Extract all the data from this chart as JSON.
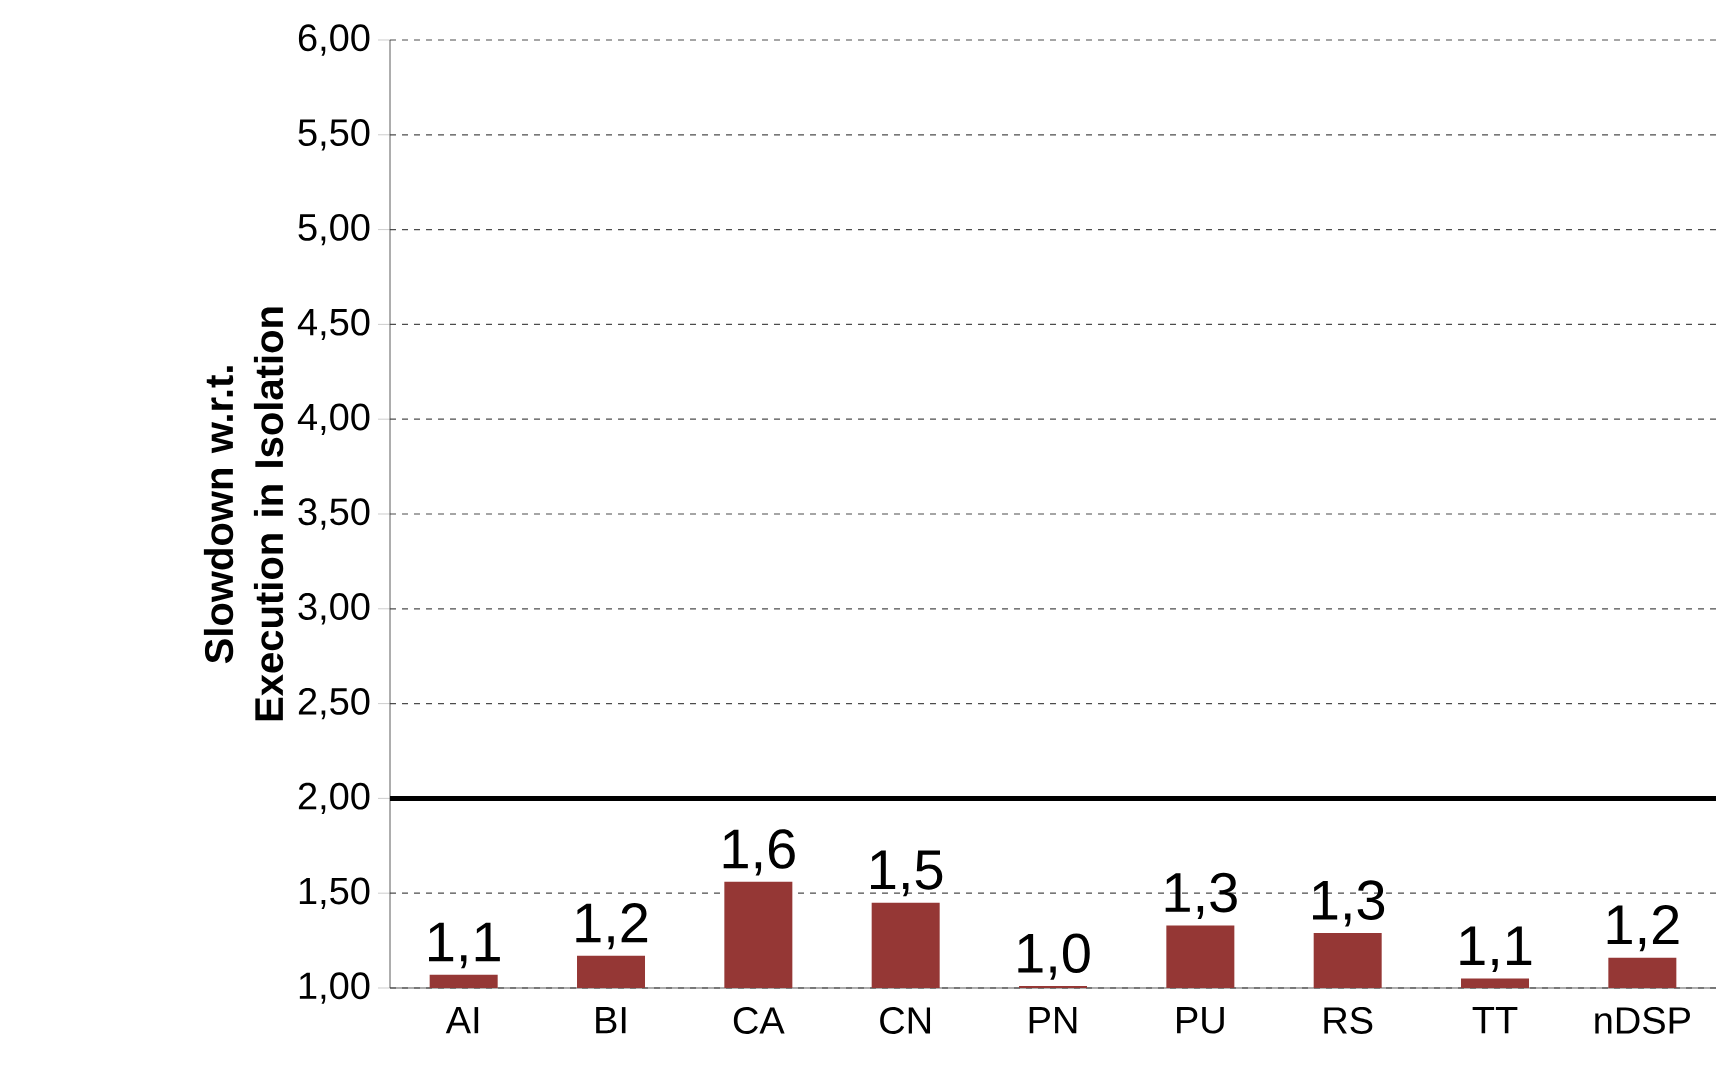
{
  "chart_data": {
    "type": "bar",
    "ylabel": "Slowdown  w.r.t. Execution in Isolation",
    "categories": [
      "AI",
      "BI",
      "CA",
      "CN",
      "PN",
      "PU",
      "RS",
      "TT",
      "nDSP"
    ],
    "values": [
      1.07,
      1.17,
      1.56,
      1.45,
      1.01,
      1.33,
      1.29,
      1.05,
      1.16
    ],
    "value_labels": [
      "1,1",
      "1,2",
      "1,6",
      "1,5",
      "1,0",
      "1,3",
      "1,3",
      "1,1",
      "1,2"
    ],
    "color": "#953735",
    "ylim": [
      1,
      6
    ],
    "yticks": [
      {
        "value": 1,
        "label": "1,00"
      },
      {
        "value": 1.5,
        "label": "1,50"
      },
      {
        "value": 2,
        "label": "2,00"
      },
      {
        "value": 2.5,
        "label": "2,50"
      },
      {
        "value": 3,
        "label": "3,00"
      },
      {
        "value": 3.5,
        "label": "3,50"
      },
      {
        "value": 4,
        "label": "4,00"
      },
      {
        "value": 4.5,
        "label": "4,50"
      },
      {
        "value": 5,
        "label": "5,00"
      },
      {
        "value": 5.5,
        "label": "5,50"
      },
      {
        "value": 6,
        "label": "6,00"
      }
    ],
    "grid": "y",
    "ref_lines": [
      {
        "axis": "y",
        "value": 2,
        "color": "#000000",
        "line_style": "solid"
      }
    ]
  }
}
